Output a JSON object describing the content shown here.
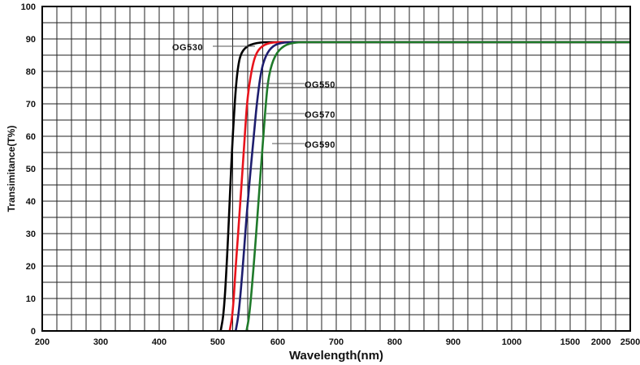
{
  "chart_data": {
    "type": "line",
    "xlabel": "Wavelength(nm)",
    "ylabel": "Transimitance(T%)",
    "ylim": [
      0,
      100
    ],
    "x_tick_labels": [
      "200",
      "300",
      "400",
      "500",
      "600",
      "700",
      "800",
      "900",
      "1000",
      "1500",
      "2000",
      "2500"
    ],
    "y_tick_labels": [
      "0",
      "10",
      "20",
      "30",
      "40",
      "50",
      "60",
      "70",
      "80",
      "90",
      "100"
    ],
    "grid": true,
    "series": [
      {
        "name": "OG530",
        "color": "#000000",
        "points": [
          [
            505,
            0
          ],
          [
            510,
            5
          ],
          [
            515,
            20
          ],
          [
            520,
            40
          ],
          [
            525,
            60
          ],
          [
            530,
            75
          ],
          [
            535,
            83
          ],
          [
            540,
            86
          ],
          [
            550,
            88
          ],
          [
            570,
            89
          ],
          [
            600,
            89
          ],
          [
            2500,
            89
          ]
        ]
      },
      {
        "name": "OG550",
        "color": "#e8141c",
        "points": [
          [
            520,
            0
          ],
          [
            525,
            5
          ],
          [
            530,
            20
          ],
          [
            538,
            40
          ],
          [
            545,
            60
          ],
          [
            550,
            73
          ],
          [
            558,
            82
          ],
          [
            565,
            86
          ],
          [
            575,
            88
          ],
          [
            590,
            89
          ],
          [
            620,
            89
          ],
          [
            2500,
            89
          ]
        ]
      },
      {
        "name": "OG570",
        "color": "#1e1e6e",
        "points": [
          [
            530,
            0
          ],
          [
            535,
            5
          ],
          [
            542,
            20
          ],
          [
            550,
            40
          ],
          [
            560,
            60
          ],
          [
            565,
            70
          ],
          [
            572,
            80
          ],
          [
            580,
            85
          ],
          [
            592,
            88
          ],
          [
            610,
            89
          ],
          [
            640,
            89
          ],
          [
            2500,
            89
          ]
        ]
      },
      {
        "name": "OG590",
        "color": "#1f7a2a",
        "points": [
          [
            548,
            0
          ],
          [
            553,
            5
          ],
          [
            560,
            20
          ],
          [
            568,
            40
          ],
          [
            574,
            55
          ],
          [
            580,
            70
          ],
          [
            585,
            79
          ],
          [
            595,
            85
          ],
          [
            610,
            88
          ],
          [
            630,
            89
          ],
          [
            660,
            89
          ],
          [
            2500,
            89
          ]
        ]
      }
    ],
    "annotations": [
      {
        "text": "OG530",
        "series": "OG530"
      },
      {
        "text": "OG550",
        "series": "OG550"
      },
      {
        "text": "OG570",
        "series": "OG570"
      },
      {
        "text": "OG590",
        "series": "OG590"
      }
    ]
  }
}
